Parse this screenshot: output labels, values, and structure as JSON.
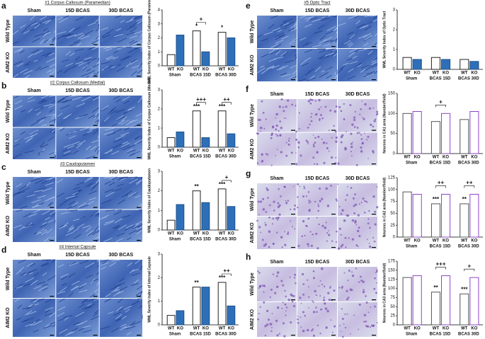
{
  "panels": [
    {
      "letter": "a",
      "section": "#1 Corpus Callosum (Paramedian)",
      "columns": [
        "Sham",
        "15D BCAS",
        "30D BCAS"
      ],
      "rows": [
        "Wild Type",
        "AIM2 KO"
      ]
    },
    {
      "letter": "b",
      "section": "#2 Corpus Callosum (Medial)",
      "columns": [
        "Sham",
        "15D BCAS",
        "30D BCAS"
      ],
      "rows": [
        "Wild Type",
        "AIM2 KO"
      ]
    },
    {
      "letter": "c",
      "section": "#3 Caudoputamen",
      "columns": [
        "Sham",
        "15D BCAS",
        "30D BCAS"
      ],
      "rows": [
        "Wild Type",
        "AIM2 KO"
      ]
    },
    {
      "letter": "d",
      "section": "#4 Internal Capsule",
      "columns": [
        "Sham",
        "15D BCAS",
        "30D BCAS"
      ],
      "rows": [
        "Wild Type",
        "AIM2 KO"
      ]
    },
    {
      "letter": "e",
      "section": "#5 Optic Tract",
      "columns": [
        "Sham",
        "15D BCAS",
        "30D BCAS"
      ],
      "rows": [
        "Wild Type",
        "AIM2 KO"
      ]
    },
    {
      "letter": "f",
      "columns": [
        "Sham",
        "15D BCAS",
        "30D BCAS"
      ],
      "rows": [
        "Wild Type",
        "AIM2 KO"
      ]
    },
    {
      "letter": "g",
      "columns": [
        "Sham",
        "15D BCAS",
        "30D BCAS"
      ],
      "rows": [
        "Wild Type",
        "AIM2 KO"
      ]
    },
    {
      "letter": "h",
      "columns": [
        "Sham",
        "15D BCAS",
        "30D BCAS"
      ],
      "rows": [
        "Wild Type",
        "AIM2 KO"
      ]
    }
  ],
  "chart_data": [
    {
      "type": "bar",
      "y_label": "WML Severity Index of Corpus Callosum (Paramedian)",
      "categories": [
        "Sham",
        "BCAS 15D",
        "BCAS 30D"
      ],
      "series": [
        {
          "name": "WT",
          "color": "#ffffff",
          "edgecolor": "#222222",
          "values": [
            0.8,
            2.5,
            2.4
          ],
          "annotations": [
            null,
            "*",
            "*"
          ]
        },
        {
          "name": "KO",
          "color": "#2e6fb8",
          "edgecolor": "#1d4f8a",
          "values": [
            2.2,
            1.0,
            2.0
          ]
        }
      ],
      "comparisons": [
        null,
        "+",
        null
      ],
      "ylim": [
        0,
        4
      ],
      "yticks": [
        0,
        1,
        2,
        3,
        4
      ]
    },
    {
      "type": "bar",
      "y_label": "WML Severity Index of Corpus Callosum (Medial)",
      "categories": [
        "Sham",
        "BCAS 15D",
        "BCAS 30D"
      ],
      "series": [
        {
          "name": "WT",
          "color": "#ffffff",
          "edgecolor": "#222222",
          "values": [
            0.5,
            1.9,
            1.9
          ],
          "annotations": [
            null,
            "***",
            "***"
          ]
        },
        {
          "name": "KO",
          "color": "#2e6fb8",
          "edgecolor": "#1d4f8a",
          "values": [
            0.8,
            0.5,
            0.7
          ]
        }
      ],
      "comparisons": [
        null,
        "+++",
        "++"
      ],
      "ylim": [
        0,
        3
      ],
      "yticks": [
        0,
        1,
        2,
        3
      ]
    },
    {
      "type": "bar",
      "y_label": "WML Severity Index of Caudoputamen",
      "categories": [
        "Sham",
        "BCAS 15D",
        "BCAS 30D"
      ],
      "series": [
        {
          "name": "WT",
          "color": "#ffffff",
          "edgecolor": "#222222",
          "values": [
            0.5,
            2.0,
            2.1
          ],
          "annotations": [
            null,
            "**",
            "***"
          ]
        },
        {
          "name": "KO",
          "color": "#2e6fb8",
          "edgecolor": "#1d4f8a",
          "values": [
            1.3,
            1.4,
            1.2
          ]
        }
      ],
      "comparisons": [
        null,
        null,
        "+"
      ],
      "ylim": [
        0,
        3
      ],
      "yticks": [
        0,
        1,
        2,
        3
      ]
    },
    {
      "type": "bar",
      "y_label": "WML Severity Index of Internal Capsule",
      "categories": [
        "Sham",
        "BCAS 15D",
        "BCAS 30D"
      ],
      "series": [
        {
          "name": "WT",
          "color": "#ffffff",
          "edgecolor": "#222222",
          "values": [
            0.4,
            1.6,
            1.8
          ],
          "annotations": [
            null,
            "**",
            "***"
          ]
        },
        {
          "name": "KO",
          "color": "#2e6fb8",
          "edgecolor": "#1d4f8a",
          "values": [
            0.6,
            1.6,
            0.8
          ]
        }
      ],
      "comparisons": [
        null,
        null,
        "++"
      ],
      "ylim": [
        0,
        3
      ],
      "yticks": [
        0,
        1,
        2,
        3
      ]
    },
    {
      "type": "bar",
      "y_label": "WML Severity Index of Optic Tract",
      "categories": [
        "Sham",
        "BCAS 15D",
        "BCAS 30D"
      ],
      "series": [
        {
          "name": "WT",
          "color": "#ffffff",
          "edgecolor": "#222222",
          "values": [
            0.6,
            0.6,
            0.5
          ]
        },
        {
          "name": "KO",
          "color": "#2e6fb8",
          "edgecolor": "#1d4f8a",
          "values": [
            0.5,
            0.5,
            0.4
          ]
        }
      ],
      "ylim": [
        0,
        3
      ],
      "yticks": [
        0,
        1,
        2,
        3
      ]
    },
    {
      "type": "bar",
      "y_label": "Neurons in CA1 area (Number/field)",
      "categories": [
        "Sham",
        "BCAS 15D",
        "BCAS 30D"
      ],
      "series": [
        {
          "name": "WT",
          "color": "#ffffff",
          "edgecolor": "#555555",
          "values": [
            100,
            80,
            85
          ]
        },
        {
          "name": "KO",
          "color": "#ffffff",
          "edgecolor": "#8e44c8",
          "values": [
            105,
            100,
            105
          ]
        }
      ],
      "comparisons": [
        null,
        "+",
        null
      ],
      "ylim": [
        0,
        150
      ],
      "yticks": [
        0,
        50,
        100,
        150
      ]
    },
    {
      "type": "bar",
      "y_label": "Neurons in CA2 area (Number/field)",
      "categories": [
        "Sham",
        "BCAS 15D",
        "BCAS 30D"
      ],
      "series": [
        {
          "name": "WT",
          "color": "#ffffff",
          "edgecolor": "#555555",
          "values": [
            95,
            70,
            70
          ],
          "annotations": [
            null,
            "***",
            "**"
          ]
        },
        {
          "name": "KO",
          "color": "#ffffff",
          "edgecolor": "#8e44c8",
          "values": [
            90,
            90,
            90
          ]
        }
      ],
      "comparisons": [
        null,
        "++",
        "++"
      ],
      "ylim": [
        0,
        125
      ],
      "yticks": [
        0,
        25,
        50,
        75,
        100,
        125
      ]
    },
    {
      "type": "bar",
      "y_label": "Neurons in CA3 area (Number/field)",
      "categories": [
        "Sham",
        "BCAS 15D",
        "BCAS 30D"
      ],
      "series": [
        {
          "name": "WT",
          "color": "#ffffff",
          "edgecolor": "#555555",
          "values": [
            130,
            90,
            85
          ],
          "annotations": [
            null,
            "**",
            "***"
          ]
        },
        {
          "name": "KO",
          "color": "#ffffff",
          "edgecolor": "#8e44c8",
          "values": [
            135,
            135,
            130
          ]
        }
      ],
      "comparisons": [
        null,
        "+++",
        "+"
      ],
      "ylim": [
        0,
        175
      ],
      "yticks": [
        0,
        25,
        50,
        75,
        100,
        125,
        150,
        175
      ]
    }
  ]
}
